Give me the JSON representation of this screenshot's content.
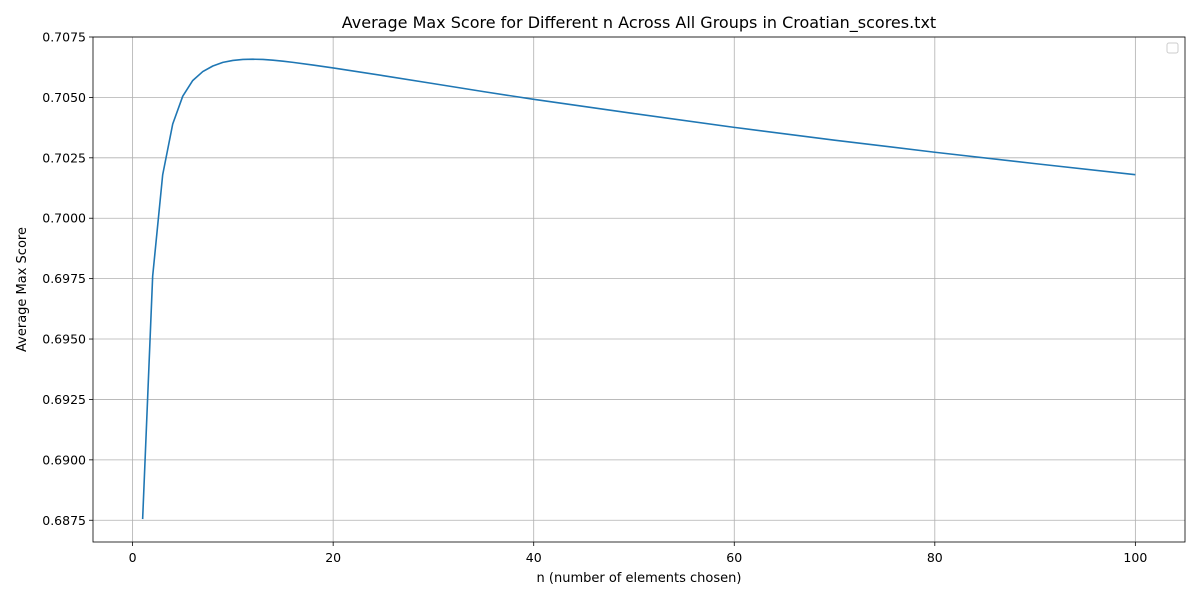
{
  "chart_data": {
    "type": "line",
    "title": "Average Max Score for Different n Across All Groups in Croatian_scores.txt",
    "xlabel": "n (number of elements chosen)",
    "ylabel": "Average Max Score",
    "xlim": [
      -3.95,
      104.95
    ],
    "ylim": [
      0.6866,
      0.7075
    ],
    "xticks": [
      0,
      20,
      40,
      60,
      80,
      100
    ],
    "yticks": [
      0.6875,
      0.69,
      0.6925,
      0.695,
      0.6975,
      0.7,
      0.7025,
      0.705,
      0.7075
    ],
    "xtick_labels": [
      "0",
      "20",
      "40",
      "60",
      "80",
      "100"
    ],
    "ytick_labels": [
      "0.6875",
      "0.6900",
      "0.6925",
      "0.6950",
      "0.6975",
      "0.7000",
      "0.7025",
      "0.7050",
      "0.7075"
    ],
    "grid": true,
    "legend": "upper-right (empty)",
    "series": [
      {
        "color": "#1f77b4",
        "x": [
          1,
          2,
          3,
          4,
          5,
          6,
          7,
          8,
          9,
          10,
          11,
          12,
          13,
          14,
          15,
          16,
          18,
          20,
          25,
          30,
          35,
          40,
          50,
          60,
          70,
          80,
          90,
          100
        ],
        "y": [
          0.68755,
          0.6976,
          0.7018,
          0.7039,
          0.70505,
          0.7057,
          0.70607,
          0.7063,
          0.70645,
          0.70653,
          0.70657,
          0.70658,
          0.70657,
          0.70654,
          0.7065,
          0.70645,
          0.70634,
          0.70622,
          0.7059,
          0.70557,
          0.70524,
          0.70492,
          0.70433,
          0.70376,
          0.70323,
          0.70273,
          0.70226,
          0.7018
        ]
      }
    ]
  }
}
